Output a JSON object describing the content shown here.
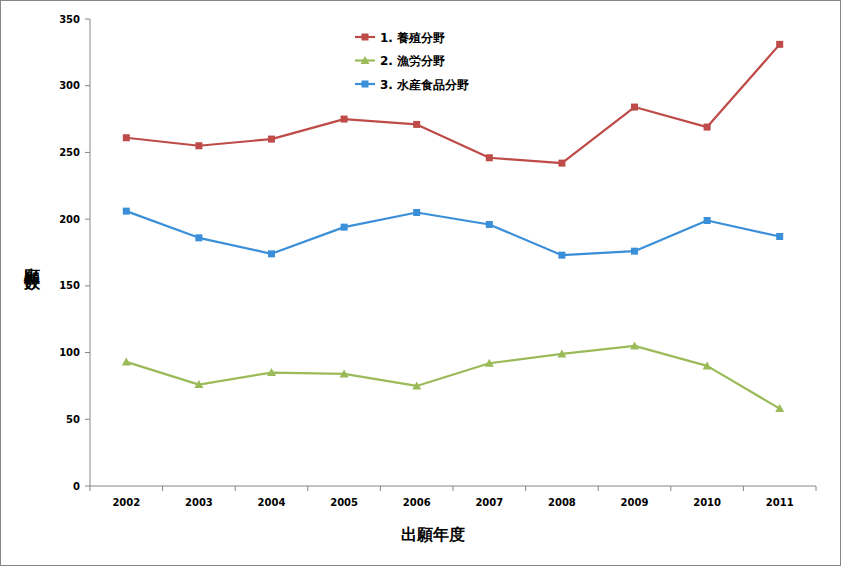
{
  "chart_data": {
    "type": "line",
    "x_label": "出願年度",
    "y_label": "出願件数",
    "categories": [
      "2002",
      "2003",
      "2004",
      "2005",
      "2006",
      "2007",
      "2008",
      "2009",
      "2010",
      "2011"
    ],
    "series": [
      {
        "name": "1. 養殖分野",
        "color": "#be4b48",
        "marker": "square",
        "values": [
          261,
          255,
          260,
          275,
          271,
          246,
          242,
          284,
          269,
          331
        ]
      },
      {
        "name": "2. 漁労分野",
        "color": "#9bbb59",
        "marker": "triangle",
        "values": [
          93,
          76,
          85,
          84,
          75,
          92,
          99,
          105,
          90,
          58
        ]
      },
      {
        "name": "3. 水産食品分野",
        "color": "#3a8fd8",
        "marker": "square",
        "values": [
          206,
          186,
          174,
          194,
          205,
          196,
          173,
          176,
          199,
          187
        ]
      }
    ],
    "ylim": [
      0,
      350
    ],
    "yticks": [
      0,
      50,
      100,
      150,
      200,
      250,
      300,
      350
    ],
    "grid": false,
    "legend": "top"
  }
}
